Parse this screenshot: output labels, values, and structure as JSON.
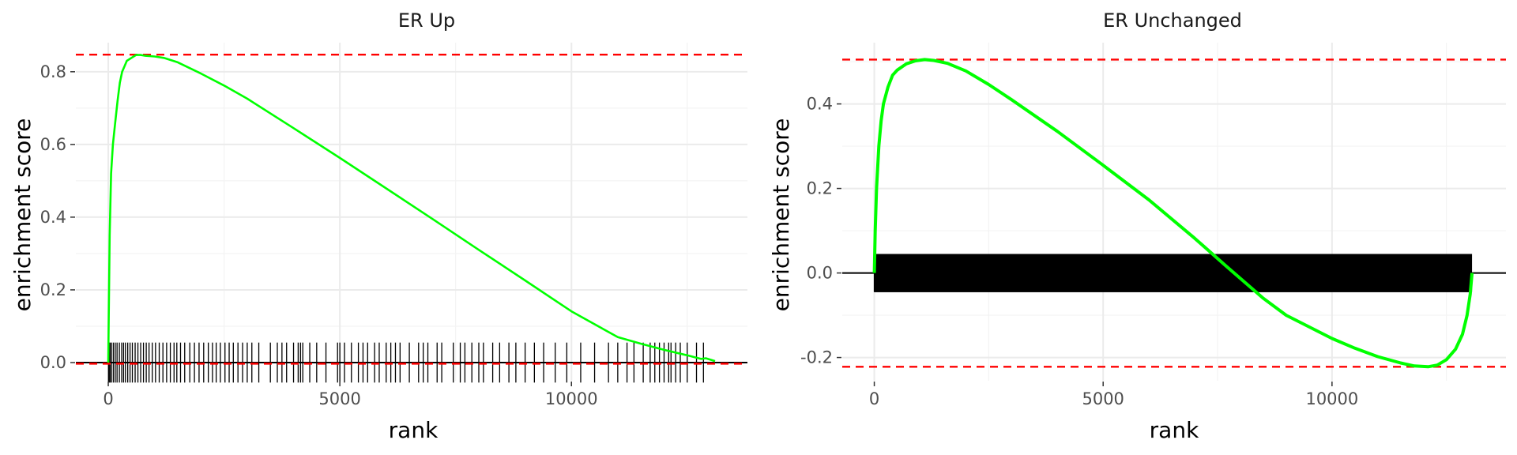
{
  "chart_data": [
    {
      "type": "line",
      "title": "ER Up",
      "xlabel": "rank",
      "ylabel": "enrichment score",
      "xlim": [
        -700,
        13800
      ],
      "ylim": [
        -0.05,
        0.88
      ],
      "x_ticks": [
        0,
        5000,
        10000
      ],
      "y_ticks": [
        0.0,
        0.2,
        0.4,
        0.6,
        0.8
      ],
      "y_tick_labels": [
        "0.0",
        "0.2",
        "0.4",
        "0.6",
        "0.8"
      ],
      "x_tick_labels": [
        "0",
        "5000",
        "10000"
      ],
      "grid": true,
      "line_color": "#00ff00",
      "dashed_line_color": "#ff0000",
      "max_es": 0.847,
      "min_es": -0.003,
      "series": [
        {
          "x": [
            0,
            10,
            30,
            60,
            100,
            150,
            200,
            250,
            300,
            350,
            400,
            500,
            600,
            700,
            800,
            1000,
            1200,
            1500,
            2000,
            2500,
            3000,
            4000,
            5000,
            6000,
            7000,
            8000,
            9000,
            10000,
            11000,
            11500,
            12000,
            12500,
            12800,
            12900,
            13100
          ],
          "y": [
            0.0,
            0.12,
            0.35,
            0.52,
            0.6,
            0.66,
            0.72,
            0.77,
            0.8,
            0.815,
            0.83,
            0.838,
            0.846,
            0.846,
            0.844,
            0.842,
            0.838,
            0.826,
            0.795,
            0.762,
            0.726,
            0.645,
            0.563,
            0.479,
            0.395,
            0.31,
            0.226,
            0.141,
            0.07,
            0.052,
            0.035,
            0.02,
            0.01,
            0.012,
            0.004
          ]
        }
      ],
      "rug_ranks": [
        5,
        20,
        40,
        70,
        110,
        150,
        190,
        240,
        290,
        330,
        370,
        420,
        470,
        520,
        580,
        640,
        700,
        760,
        820,
        880,
        950,
        1020,
        1100,
        1180,
        1260,
        1340,
        1420,
        1480,
        1560,
        1650,
        1760,
        1860,
        1960,
        2060,
        2160,
        2250,
        2330,
        2420,
        2520,
        2610,
        2700,
        2800,
        2900,
        3000,
        3100,
        3250,
        3500,
        3650,
        3750,
        3850,
        4000,
        4100,
        4150,
        4200,
        4350,
        4500,
        4700,
        4950,
        5000,
        5100,
        5250,
        5400,
        5500,
        5600,
        5750,
        5850,
        6000,
        6100,
        6200,
        6300,
        6500,
        6700,
        6800,
        6900,
        7100,
        7200,
        7450,
        7600,
        7700,
        7850,
        8000,
        8100,
        8300,
        8450,
        8650,
        8800,
        9000,
        9200,
        9400,
        9650,
        9900,
        10200,
        10500,
        10800,
        11000,
        11200,
        11350,
        11550,
        11700,
        11800,
        11900,
        12000,
        12100,
        12150,
        12250,
        12350,
        12500,
        12700,
        12850
      ]
    },
    {
      "type": "line",
      "title": "ER Unchanged",
      "xlabel": "rank",
      "ylabel": "enrichment score",
      "xlim": [
        -700,
        13800
      ],
      "ylim": [
        -0.255,
        0.545
      ],
      "x_ticks": [
        0,
        5000,
        10000
      ],
      "y_ticks": [
        -0.2,
        0.0,
        0.2,
        0.4
      ],
      "y_tick_labels": [
        "-0.2",
        "0.0",
        "0.2",
        "0.4"
      ],
      "x_tick_labels": [
        "0",
        "5000",
        "10000"
      ],
      "grid": true,
      "line_color": "#00ff00",
      "dashed_line_color": "#ff0000",
      "max_es": 0.505,
      "min_es": -0.222,
      "series": [
        {
          "x": [
            0,
            20,
            50,
            100,
            150,
            200,
            300,
            400,
            500,
            700,
            900,
            1100,
            1300,
            1600,
            2000,
            2500,
            3000,
            4000,
            5000,
            6000,
            7000,
            7700,
            8500,
            9000,
            10000,
            10500,
            11000,
            11500,
            11800,
            12100,
            12300,
            12500,
            12700,
            12850,
            12950,
            13020,
            13060
          ],
          "y": [
            0.0,
            0.1,
            0.2,
            0.3,
            0.36,
            0.4,
            0.44,
            0.468,
            0.48,
            0.495,
            0.502,
            0.505,
            0.503,
            0.496,
            0.478,
            0.446,
            0.41,
            0.335,
            0.255,
            0.173,
            0.082,
            0.015,
            -0.06,
            -0.1,
            -0.155,
            -0.178,
            -0.198,
            -0.213,
            -0.22,
            -0.222,
            -0.218,
            -0.205,
            -0.18,
            -0.145,
            -0.1,
            -0.05,
            0.0
          ]
        }
      ],
      "rug_start": 0,
      "rug_end": 13050
    }
  ]
}
